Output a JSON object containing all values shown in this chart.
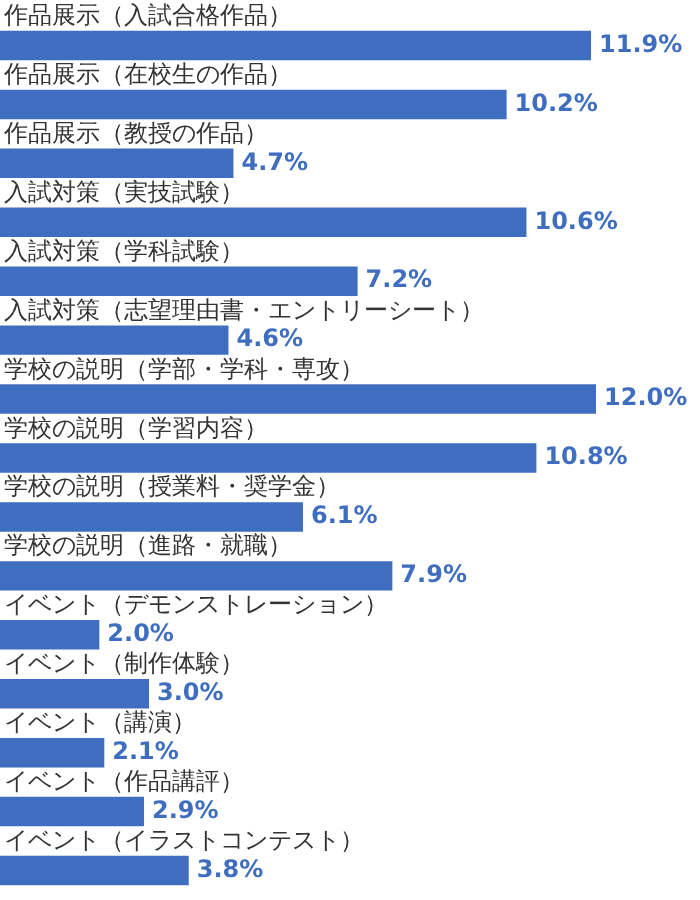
{
  "chart_data": {
    "type": "bar",
    "orientation": "horizontal",
    "relative": false,
    "categories": [
      "作品展示（入試合格作品）",
      "作品展示（在校生の作品）",
      "作品展示（教授の作品）",
      "入試対策（実技試験）",
      "入試対策（学科試験）",
      "入試対策（志望理由書・エントリーシート）",
      "学校の説明（学部・学科・専攻）",
      "学校の説明（学習内容）",
      "学校の説明（授業料・奨学金）",
      "学校の説明（進路・就職）",
      "イベント（デモンストレーション）",
      "イベント（制作体験）",
      "イベント（講演）",
      "イベント（作品講評）",
      "イベント（イラストコンテスト）"
    ],
    "values": [
      11.9,
      10.2,
      4.7,
      10.6,
      7.2,
      4.6,
      12.0,
      10.8,
      6.1,
      7.9,
      2.0,
      3.0,
      2.1,
      2.9,
      3.8
    ],
    "value_labels": [
      "11.9%",
      "10.2%",
      "4.7%",
      "10.6%",
      "7.2%",
      "4.6%",
      "12.0%",
      "10.8%",
      "6.1%",
      "7.9%",
      "2.0%",
      "3.0%",
      "2.1%",
      "2.9%",
      "3.8%"
    ],
    "color": "#3f6ec0",
    "tick_labels": false
  }
}
